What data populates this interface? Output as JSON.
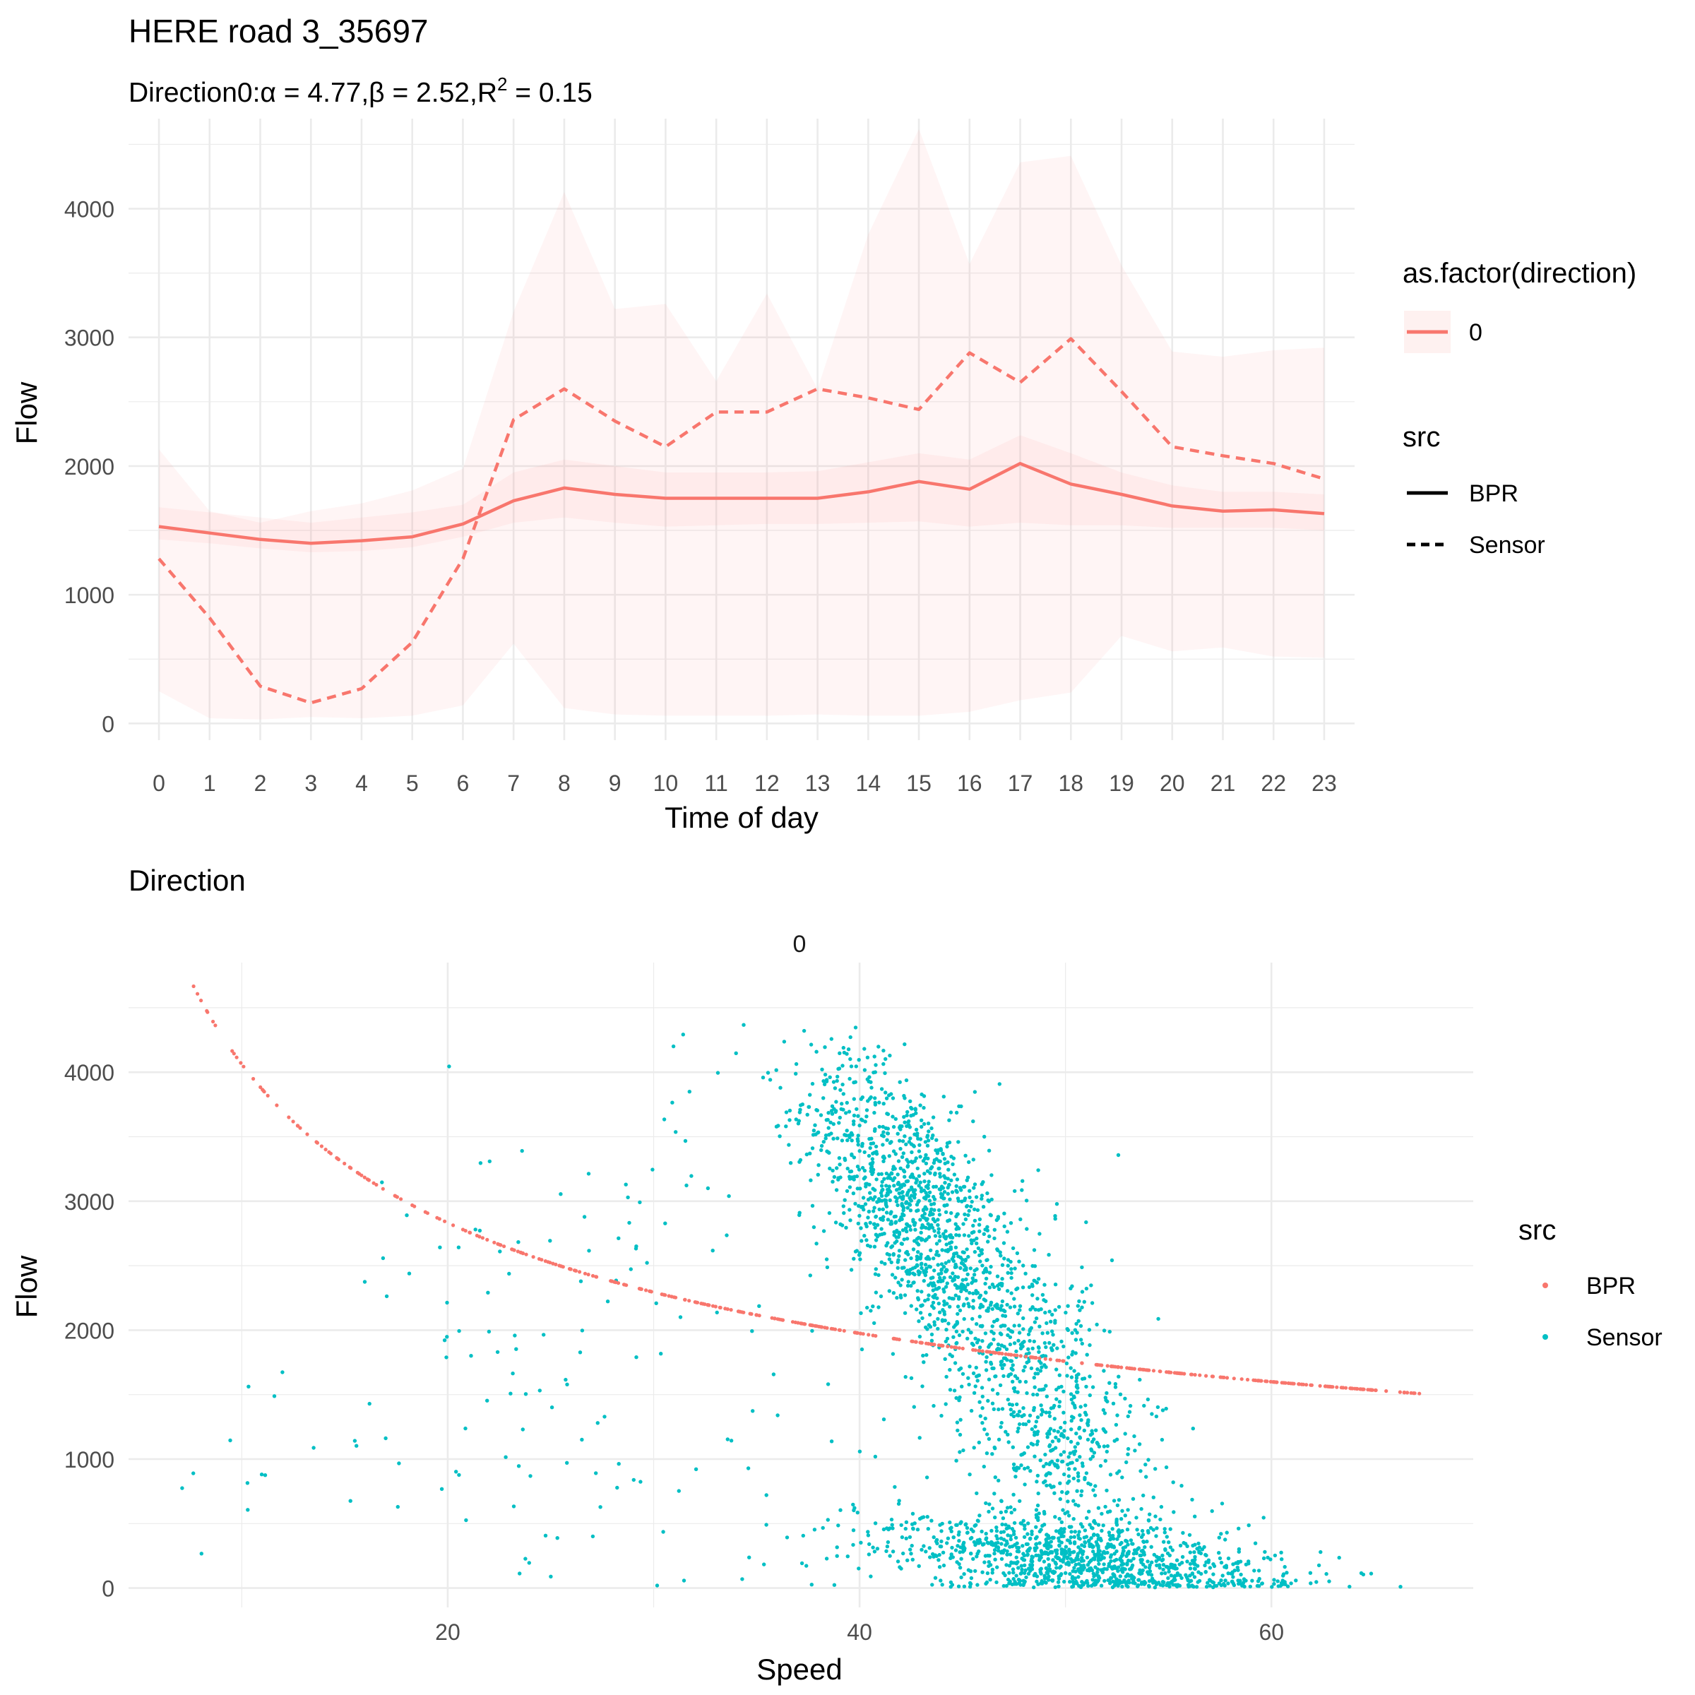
{
  "title": "HERE road 3_35697",
  "subtitle": {
    "prefix": "Direction0:",
    "alpha_sym": "α",
    "alpha_val": "4.77",
    "beta_sym": "β",
    "beta_val": "2.52",
    "r_sym": "R",
    "r_exp": "2",
    "r_val": "0.15"
  },
  "colors": {
    "red": "#F8766D",
    "teal": "#00BFC4",
    "grid": "#ebebeb",
    "text": "#4d4d4d"
  },
  "chart_data": [
    {
      "type": "line",
      "xlabel": "Time of day",
      "ylabel": "Flow",
      "xlim": [
        -0.6,
        23.6
      ],
      "ylim": [
        -130,
        4700
      ],
      "x_ticks": [
        "0",
        "1",
        "2",
        "3",
        "4",
        "5",
        "6",
        "7",
        "8",
        "9",
        "10",
        "11",
        "12",
        "13",
        "14",
        "15",
        "16",
        "17",
        "18",
        "19",
        "20",
        "21",
        "22",
        "23"
      ],
      "y_ticks": [
        "0",
        "1000",
        "2000",
        "3000",
        "4000"
      ],
      "legend_direction": {
        "title": "as.factor(direction)",
        "items": [
          "0"
        ]
      },
      "legend_src": {
        "title": "src",
        "items": [
          "BPR",
          "Sensor"
        ]
      },
      "x": [
        0,
        1,
        2,
        3,
        4,
        5,
        6,
        7,
        8,
        9,
        10,
        11,
        12,
        13,
        14,
        15,
        16,
        17,
        18,
        19,
        20,
        21,
        22,
        23
      ],
      "series": [
        {
          "name": "BPR",
          "linetype": "solid",
          "values": [
            1530,
            1480,
            1430,
            1400,
            1420,
            1450,
            1550,
            1730,
            1830,
            1780,
            1750,
            1750,
            1750,
            1750,
            1800,
            1880,
            1820,
            2020,
            1860,
            1780,
            1690,
            1650,
            1660,
            1630
          ],
          "band_low": [
            1430,
            1400,
            1360,
            1330,
            1340,
            1370,
            1450,
            1560,
            1600,
            1560,
            1530,
            1540,
            1550,
            1550,
            1560,
            1570,
            1530,
            1560,
            1540,
            1540,
            1520,
            1520,
            1520,
            1500
          ],
          "band_high": [
            1680,
            1640,
            1600,
            1560,
            1600,
            1640,
            1700,
            1950,
            2050,
            2000,
            1950,
            1950,
            1950,
            1960,
            2030,
            2100,
            2050,
            2240,
            2100,
            1950,
            1850,
            1800,
            1800,
            1780
          ]
        },
        {
          "name": "Sensor",
          "linetype": "dashed",
          "values": [
            1280,
            820,
            290,
            160,
            270,
            630,
            1280,
            2360,
            2600,
            2350,
            2150,
            2420,
            2420,
            2600,
            2530,
            2440,
            2880,
            2650,
            2990,
            2580,
            2150,
            2080,
            2020,
            1900
          ],
          "band_low": [
            250,
            40,
            30,
            50,
            40,
            60,
            140,
            620,
            120,
            70,
            60,
            60,
            60,
            70,
            60,
            60,
            90,
            180,
            240,
            680,
            560,
            590,
            520,
            510
          ],
          "band_high": [
            2130,
            1650,
            1560,
            1650,
            1710,
            1810,
            1980,
            3200,
            4130,
            3220,
            3260,
            2660,
            3340,
            2600,
            3800,
            4620,
            3570,
            4360,
            4410,
            3560,
            2890,
            2850,
            2900,
            2920
          ]
        }
      ]
    },
    {
      "type": "scatter",
      "title": "Direction",
      "facet_label": "0",
      "xlabel": "Speed",
      "ylabel": "Flow",
      "xlim": [
        4.5,
        69.8
      ],
      "ylim": [
        -150,
        4850
      ],
      "x_ticks": [
        20,
        40,
        60
      ],
      "y_ticks": [
        0,
        1000,
        2000,
        3000,
        4000
      ],
      "legend": {
        "title": "src",
        "items": [
          "BPR",
          "Sensor"
        ]
      },
      "bpr_curve": {
        "alpha": 4.77,
        "beta": 2.52,
        "ref_speed": 10.3,
        "ref_flow": 4000,
        "x_range": [
          7.6,
          67.2
        ]
      },
      "sensor_clusters": [
        {
          "n": 1150,
          "x_mean": 42.5,
          "x_sd": 2.6,
          "y_mean": 2950,
          "y_sd": 480,
          "slope": -160
        },
        {
          "n": 850,
          "x_mean": 49,
          "x_sd": 3.0,
          "y_mean": 1450,
          "y_sd": 650,
          "slope": -180
        },
        {
          "n": 1050,
          "x_mean": 50.5,
          "x_sd": 5.0,
          "y_mean": 230,
          "y_sd": 160,
          "slope": -15
        },
        {
          "n": 110,
          "x_mean": 24,
          "x_sd": 7.5,
          "y_mean": 2200,
          "y_sd": 900,
          "slope": 60
        },
        {
          "n": 60,
          "x_mean": 31,
          "x_sd": 9.0,
          "y_mean": 700,
          "y_sd": 450,
          "slope": 0
        }
      ]
    }
  ]
}
